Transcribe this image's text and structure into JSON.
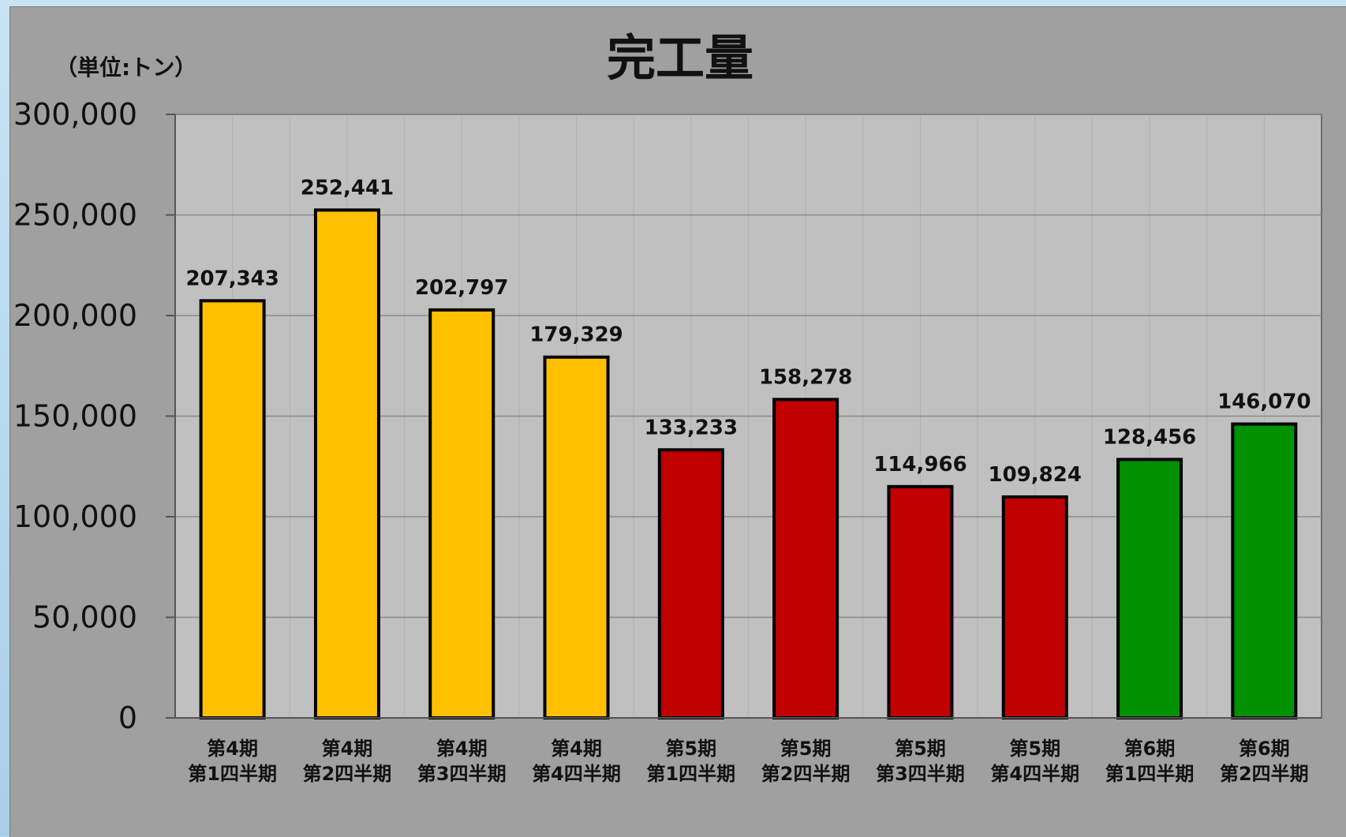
{
  "chart_data": {
    "type": "bar",
    "title": "完工量",
    "unit_label": "（単位:トン）",
    "categories": [
      [
        "第4期",
        "第1四半期"
      ],
      [
        "第4期",
        "第2四半期"
      ],
      [
        "第4期",
        "第3四半期"
      ],
      [
        "第4期",
        "第4四半期"
      ],
      [
        "第5期",
        "第1四半期"
      ],
      [
        "第5期",
        "第2四半期"
      ],
      [
        "第5期",
        "第3四半期"
      ],
      [
        "第5期",
        "第4四半期"
      ],
      [
        "第6期",
        "第1四半期"
      ],
      [
        "第6期",
        "第2四半期"
      ]
    ],
    "values": [
      207343,
      252441,
      202797,
      179329,
      133233,
      158278,
      114966,
      109824,
      128456,
      146070
    ],
    "value_labels": [
      "207,343",
      "252,441",
      "202,797",
      "179,329",
      "133,233",
      "158,278",
      "114,966",
      "109,824",
      "128,456",
      "146,070"
    ],
    "bar_colors": [
      "#ffc000",
      "#ffc000",
      "#ffc000",
      "#ffc000",
      "#c00000",
      "#c00000",
      "#c00000",
      "#c00000",
      "#009000",
      "#009000"
    ],
    "ylim": [
      0,
      300000
    ],
    "yticks": [
      0,
      50000,
      100000,
      150000,
      200000,
      250000,
      300000
    ],
    "ytick_labels": [
      "0",
      "50,000",
      "100,000",
      "150,000",
      "200,000",
      "250,000",
      "300,000"
    ],
    "grid": true,
    "legend": "none",
    "plot_background": "#c0c0c0",
    "panel_background": "#a0a0a0"
  }
}
